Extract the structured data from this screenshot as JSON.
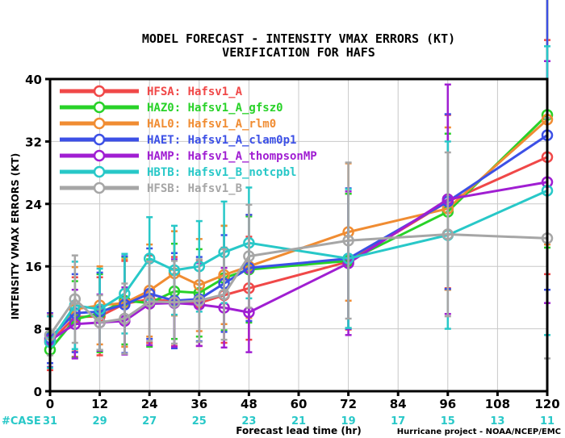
{
  "chart_data": {
    "type": "line",
    "title": "MODEL FORECAST - INTENSITY VMAX ERRORS (KT)",
    "subtitle": "VERIFICATION FOR HAFS",
    "xlabel": "Forecast lead time (hr)",
    "ylabel": "INTENSITY VMAX ERRORS (KT)",
    "xlim": [
      0,
      120
    ],
    "ylim": [
      0,
      40
    ],
    "x_ticks": [
      "0",
      "12",
      "24",
      "36",
      "48",
      "60",
      "72",
      "84",
      "96",
      "108",
      "120"
    ],
    "y_ticks": [
      "0",
      "8",
      "16",
      "24",
      "32",
      "40"
    ],
    "case_label": "#CASE",
    "case_counts": [
      "31",
      "29",
      "27",
      "25",
      "23",
      "21",
      "19",
      "17",
      "15",
      "13",
      "11"
    ],
    "credit": "Hurricane project - NOAA/NCEP/EMC",
    "legend_placement": "top-left",
    "series": [
      {
        "name": "HFSA: Hafsv1_A",
        "color": "#f04848",
        "x": [
          0,
          6,
          12,
          18,
          24,
          30,
          36,
          42,
          48,
          72,
          96,
          120
        ],
        "y": [
          6.3,
          9.5,
          9.6,
          11.2,
          11.8,
          11.5,
          11.3,
          12.3,
          13.2,
          16.6,
          24.3,
          30.0
        ],
        "err": [
          3.6,
          5.1,
          5.0,
          5.5,
          5.6,
          5.7,
          5.5,
          6.1,
          6.6,
          8.7,
          11.1,
          15.0
        ]
      },
      {
        "name": "HAZ0: Hafsv1_A_gfsz0",
        "color": "#28d228",
        "x": [
          0,
          6,
          12,
          18,
          24,
          30,
          36,
          42,
          48,
          72,
          96,
          120
        ],
        "y": [
          5.3,
          9.2,
          10.0,
          11.6,
          11.3,
          12.8,
          12.6,
          14.5,
          15.6,
          16.7,
          23.0,
          35.4
        ],
        "err": [
          2.2,
          4.9,
          5.0,
          5.6,
          5.6,
          6.1,
          5.6,
          6.7,
          6.8,
          8.6,
          10.0,
          17.0
        ]
      },
      {
        "name": "HAL0: Hafsv1_A_rlm0",
        "color": "#f08c32",
        "x": [
          0,
          6,
          12,
          18,
          24,
          30,
          36,
          42,
          48,
          72,
          96,
          120
        ],
        "y": [
          6.6,
          10.5,
          11.0,
          11.3,
          12.9,
          15.1,
          13.6,
          14.9,
          16.0,
          20.4,
          23.4,
          34.8
        ],
        "err": [
          3.0,
          5.4,
          5.0,
          5.6,
          5.9,
          5.4,
          5.9,
          6.3,
          6.6,
          8.8,
          10.4,
          16.0
        ]
      },
      {
        "name": "HAET: Hafsv1_A_clam0p1",
        "color": "#3c50e6",
        "x": [
          0,
          6,
          12,
          18,
          24,
          30,
          36,
          42,
          48,
          72,
          96,
          120
        ],
        "y": [
          6.8,
          10.0,
          10.2,
          11.1,
          12.5,
          11.6,
          11.8,
          13.8,
          15.8,
          17.0,
          24.3,
          32.8
        ],
        "err": [
          3.2,
          5.0,
          5.0,
          6.2,
          5.8,
          6.1,
          5.4,
          6.2,
          6.8,
          9.0,
          11.2,
          19.8
        ]
      },
      {
        "name": "HAMP: Hafsv1_A_thompsonMP",
        "color": "#a01ed2",
        "x": [
          0,
          6,
          12,
          18,
          24,
          30,
          36,
          42,
          48,
          72,
          96,
          120
        ],
        "y": [
          6.5,
          8.6,
          8.8,
          9.0,
          11.2,
          11.3,
          11.1,
          10.7,
          10.1,
          16.4,
          24.6,
          26.8
        ],
        "err": [
          3.4,
          4.4,
          3.6,
          4.3,
          5.3,
          5.6,
          5.3,
          5.1,
          5.1,
          9.2,
          14.7,
          15.5
        ]
      },
      {
        "name": "HBTB: Hafsv1_B_notcpbl",
        "color": "#28c8c8",
        "x": [
          0,
          6,
          12,
          18,
          24,
          30,
          36,
          42,
          48,
          72,
          96,
          120
        ],
        "y": [
          6.3,
          11.0,
          10.5,
          12.5,
          17.0,
          15.5,
          16.0,
          17.8,
          19.0,
          17.0,
          20.0,
          25.7
        ],
        "err": [
          3.3,
          5.6,
          5.2,
          5.1,
          5.3,
          5.7,
          5.8,
          6.5,
          7.1,
          8.9,
          12.0,
          18.5
        ]
      },
      {
        "name": "HFSB: Hafsv1_B",
        "color": "#a6a6a6",
        "x": [
          0,
          6,
          12,
          18,
          24,
          30,
          36,
          42,
          48,
          72,
          96,
          120
        ],
        "y": [
          7.2,
          11.8,
          8.8,
          9.3,
          11.5,
          11.4,
          11.6,
          12.4,
          17.3,
          19.3,
          20.1,
          19.6
        ],
        "err": [
          2.6,
          5.6,
          3.5,
          4.5,
          5.1,
          5.3,
          5.3,
          5.8,
          6.6,
          10.0,
          10.5,
          15.4
        ]
      }
    ]
  }
}
